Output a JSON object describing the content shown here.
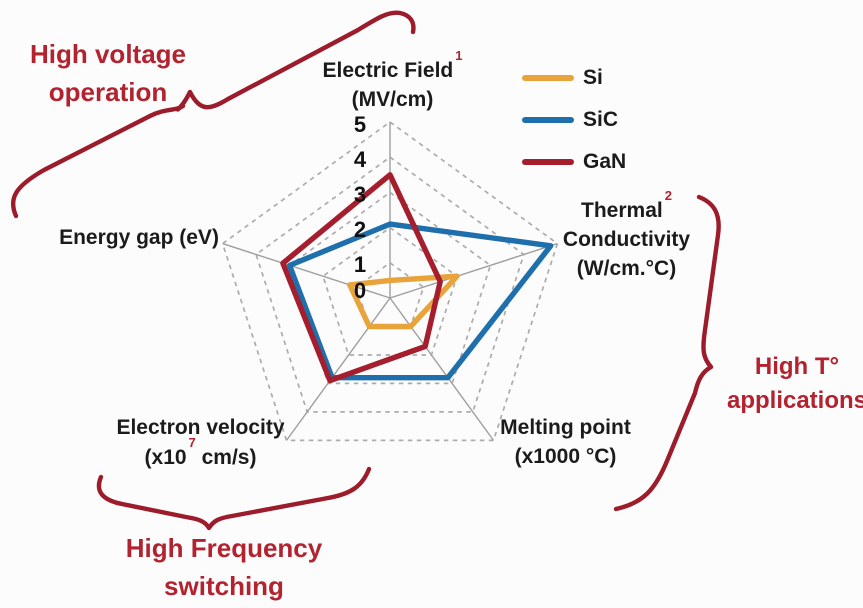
{
  "chart_data": {
    "type": "radar",
    "max": 5,
    "ticks": [
      "0",
      "1",
      "2",
      "3",
      "4",
      "5"
    ],
    "axes": [
      {
        "label": "Electric Field",
        "unit": "(MV/cm)",
        "footnote": "1"
      },
      {
        "label": "Thermal",
        "label2": "Conductivity",
        "unit": "(W/cm.°C)",
        "footnote": "2"
      },
      {
        "label": "Melting point",
        "unit": "(x1000 °C)"
      },
      {
        "label": "Electron velocity",
        "unit_prefix": "(x10",
        "unit_sup": "7",
        "unit_suffix": " cm/s)"
      },
      {
        "label": "Energy gap (eV)"
      }
    ],
    "series": [
      {
        "name": "Si",
        "color": "#E8A33B",
        "values": [
          0.5,
          2.0,
          1.0,
          1.0,
          1.2
        ]
      },
      {
        "name": "SiC",
        "color": "#1F6FAD",
        "values": [
          2.1,
          4.8,
          2.8,
          2.8,
          3.0
        ]
      },
      {
        "name": "GaN",
        "color": "#A51E2D",
        "values": [
          3.5,
          1.5,
          1.7,
          2.9,
          3.2
        ]
      }
    ],
    "legend_position": "top-right",
    "grid": "dashed pentagon rings 1-5"
  },
  "annotations": {
    "high_voltage": {
      "line1": "High voltage",
      "line2": "operation"
    },
    "high_temp": {
      "line1": "High T°",
      "line2": "applications"
    },
    "high_freq": {
      "line1": "High Frequency",
      "line2": "switching"
    }
  },
  "colors": {
    "annotation_red": "#B2232F",
    "brace_red": "#9C1C2B",
    "si_orange": "#E8A33B",
    "sic_blue": "#1F6FAD",
    "gan_red": "#A51E2D"
  }
}
